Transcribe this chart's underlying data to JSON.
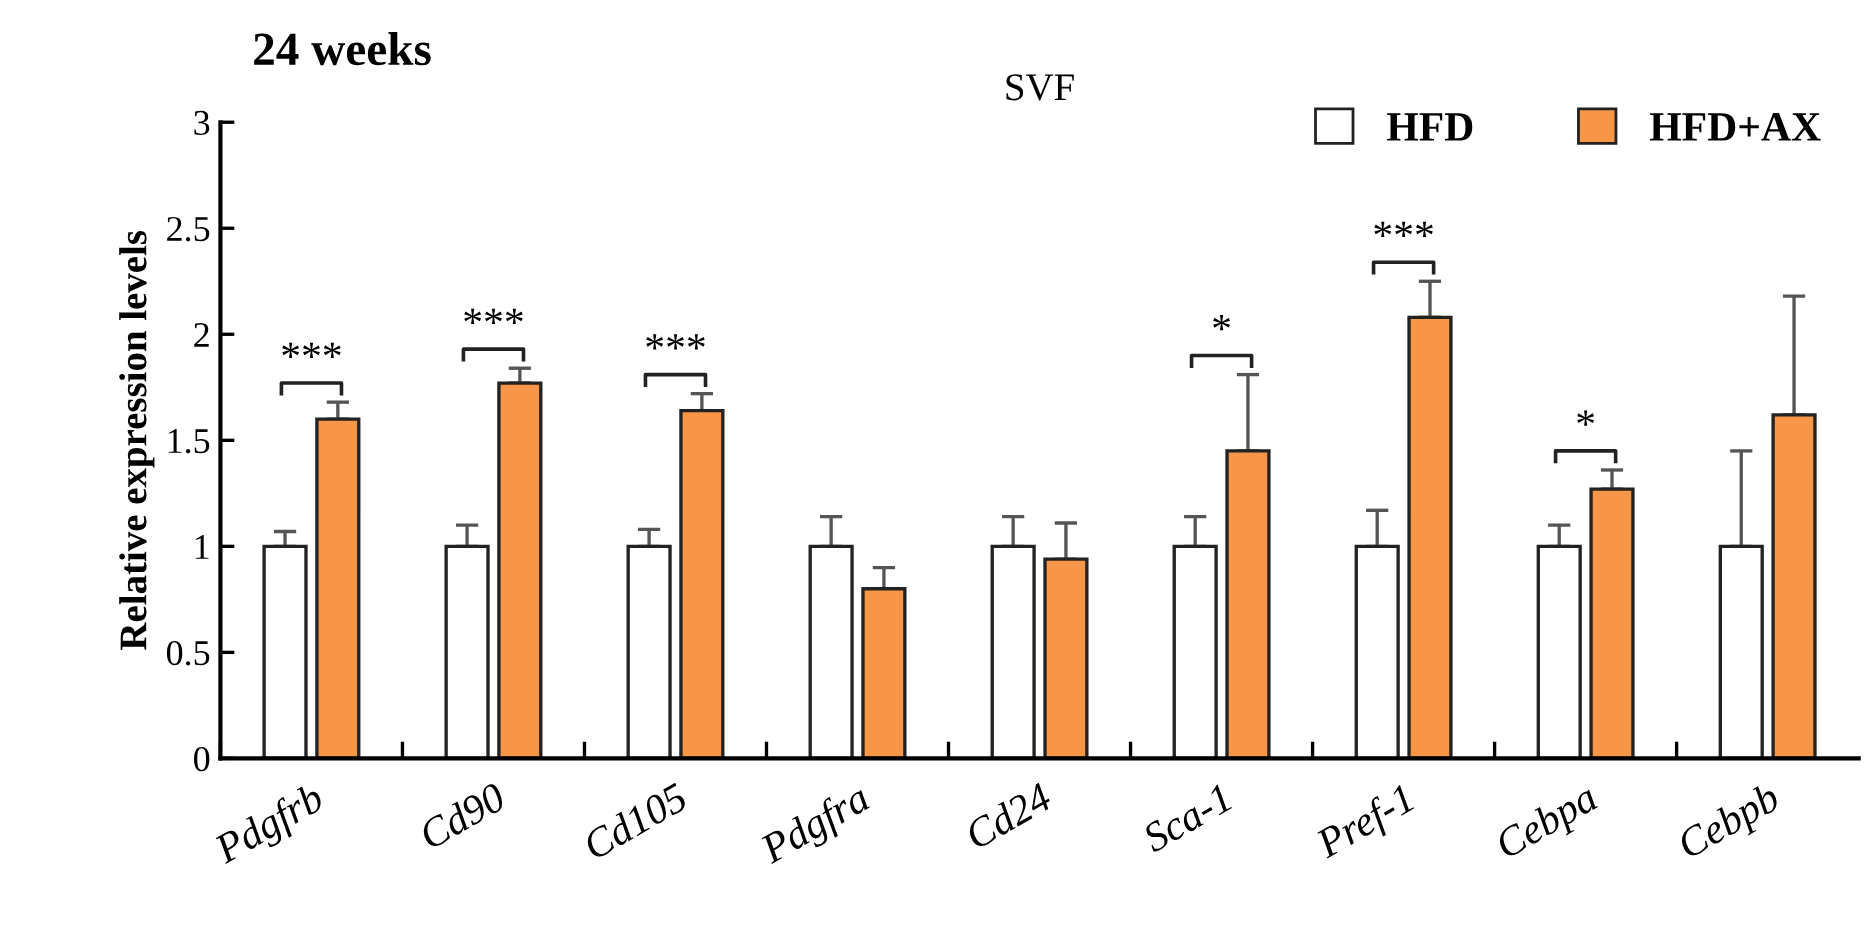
{
  "chart_data": {
    "type": "bar",
    "title": "24 weeks",
    "subtitle": "SVF",
    "ylabel": "Relative expression levels",
    "categories": [
      "Pdgfrb",
      "Cd90",
      "Cd105",
      "Pdgfra",
      "Cd24",
      "Sca-1",
      "Pref-1",
      "Cebpa",
      "Cebpb"
    ],
    "series": [
      {
        "name": "HFD",
        "color": "#ffffff",
        "values": [
          1,
          1,
          1,
          1,
          1,
          1,
          1,
          1,
          1
        ],
        "errors": [
          [
            1,
            1.07
          ],
          [
            1,
            1.1
          ],
          [
            1,
            1.08
          ],
          [
            1,
            1.14
          ],
          [
            1,
            1.14
          ],
          [
            1,
            1.14
          ],
          [
            1,
            1.17
          ],
          [
            1,
            1.1
          ],
          [
            1,
            1.45
          ]
        ]
      },
      {
        "name": "HFD+AX",
        "color": "#f79646",
        "values": [
          1.6,
          1.77,
          1.64,
          0.8,
          0.94,
          1.45,
          2.08,
          1.27,
          1.62
        ],
        "errors": [
          [
            1.6,
            1.68
          ],
          [
            1.77,
            1.84
          ],
          [
            1.64,
            1.72
          ],
          [
            0.8,
            0.9
          ],
          [
            0.94,
            1.11
          ],
          [
            1.45,
            1.81
          ],
          [
            2.08,
            2.25
          ],
          [
            1.27,
            1.36
          ],
          [
            1.62,
            2.18
          ]
        ]
      }
    ],
    "ylim": [
      0,
      3
    ],
    "yticks": [
      0,
      0.5,
      1,
      1.5,
      2,
      2.5,
      3
    ],
    "grid": false,
    "legend": "top right",
    "annotations": [
      {
        "text": "***",
        "x": "Pdgfrb",
        "y": 1.6
      },
      {
        "text": "***",
        "x": "Cd90",
        "y": 1.77
      },
      {
        "text": "***",
        "x": "Cd105",
        "y": 1.64
      },
      {
        "text": "*",
        "x": "Sca-1",
        "y": 1.45
      },
      {
        "text": "***",
        "x": "Pref-1",
        "y": 2.08
      },
      {
        "text": "*",
        "x": "Cebpa",
        "y": 1.27
      }
    ]
  }
}
